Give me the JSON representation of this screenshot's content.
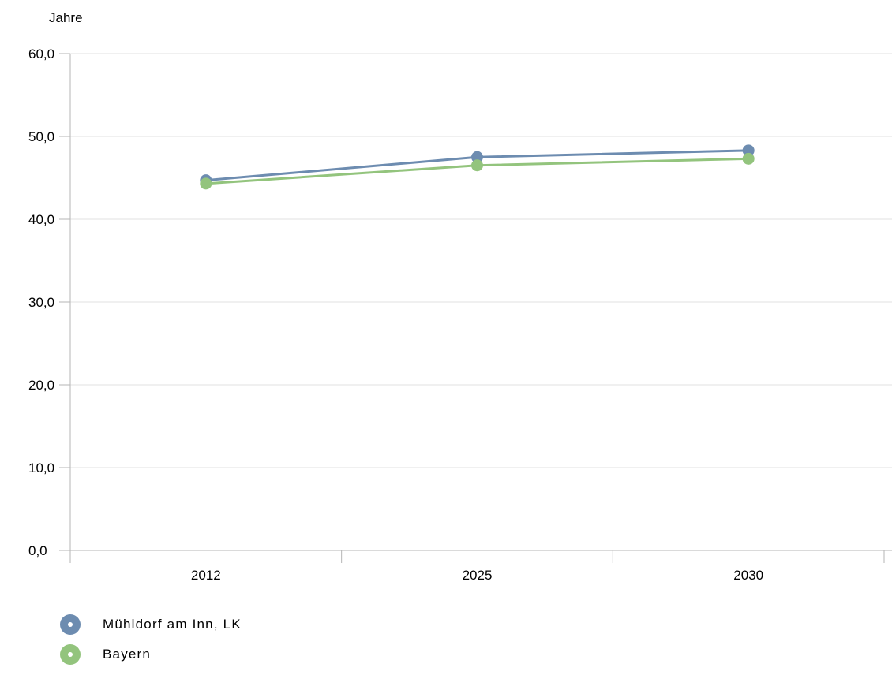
{
  "chart_data": {
    "type": "line",
    "ylabel": "Jahre",
    "categories": [
      "2012",
      "2025",
      "2030"
    ],
    "ylim": [
      0,
      60
    ],
    "yticks": [
      "0,0",
      "10,0",
      "20,0",
      "30,0",
      "40,0",
      "50,0",
      "60,0"
    ],
    "grid": true,
    "legend_position": "bottom-left",
    "series": [
      {
        "name": "Mühldorf am Inn, LK",
        "values": [
          44.7,
          47.5,
          48.3
        ],
        "color": "#6d8cb0"
      },
      {
        "name": "Bayern",
        "values": [
          44.3,
          46.5,
          47.3
        ],
        "color": "#93c47d"
      }
    ]
  }
}
